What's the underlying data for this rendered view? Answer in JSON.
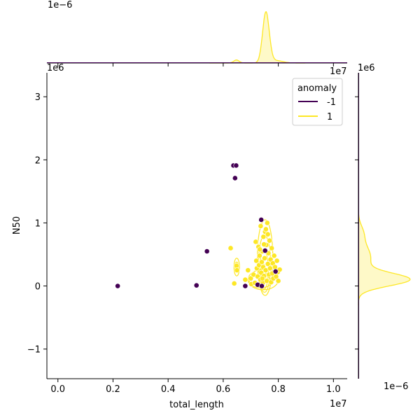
{
  "chart_data": {
    "type": "scatter",
    "xlabel": "total_length",
    "ylabel": "N50",
    "x_offset_label": "1e7",
    "y_offset_label": "1e6",
    "xlim": [
      -0.04,
      1.05
    ],
    "ylim": [
      -1.47,
      3.38
    ],
    "x_ticks": [
      "0.0",
      "0.2",
      "0.4",
      "0.6",
      "0.8",
      "1.0"
    ],
    "x_tick_values": [
      0.0,
      0.2,
      0.4,
      0.6,
      0.8,
      1.0
    ],
    "y_ticks": [
      "−1",
      "0",
      "1",
      "2",
      "3"
    ],
    "y_tick_values": [
      -1,
      0,
      1,
      2,
      3
    ],
    "grid": false,
    "legend": {
      "title": "anomaly",
      "placement": "upper-right",
      "entries": [
        {
          "label": "-1",
          "color": "#440154"
        },
        {
          "label": "1",
          "color": "#fde725"
        }
      ]
    },
    "series": [
      {
        "name": "-1",
        "color": "#440154",
        "points": [
          [
            0.217,
            0.0
          ],
          [
            0.503,
            0.01
          ],
          [
            0.541,
            0.55
          ],
          [
            0.637,
            1.91
          ],
          [
            0.647,
            1.91
          ],
          [
            0.643,
            1.71
          ],
          [
            0.738,
            1.05
          ],
          [
            0.752,
            0.56
          ],
          [
            0.79,
            0.23
          ],
          [
            0.68,
            0.0
          ],
          [
            0.725,
            0.02
          ],
          [
            0.74,
            0.0
          ]
        ]
      },
      {
        "name": "1",
        "color": "#fde725",
        "points": [
          [
            0.627,
            0.6
          ],
          [
            0.64,
            0.04
          ],
          [
            0.648,
            0.32
          ],
          [
            0.65,
            0.25
          ],
          [
            0.68,
            0.1
          ],
          [
            0.69,
            0.25
          ],
          [
            0.7,
            0.12
          ],
          [
            0.702,
            0.03
          ],
          [
            0.71,
            0.18
          ],
          [
            0.715,
            0.05
          ],
          [
            0.718,
            0.7
          ],
          [
            0.72,
            0.4
          ],
          [
            0.722,
            0.28
          ],
          [
            0.725,
            0.15
          ],
          [
            0.728,
            0.62
          ],
          [
            0.73,
            0.33
          ],
          [
            0.732,
            0.48
          ],
          [
            0.735,
            0.1
          ],
          [
            0.736,
            0.95
          ],
          [
            0.738,
            0.21
          ],
          [
            0.74,
            0.38
          ],
          [
            0.742,
            0.55
          ],
          [
            0.744,
            0.05
          ],
          [
            0.745,
            0.3
          ],
          [
            0.746,
            0.78
          ],
          [
            0.748,
            0.16
          ],
          [
            0.75,
            0.44
          ],
          [
            0.752,
            0.86
          ],
          [
            0.754,
            0.25
          ],
          [
            0.756,
            0.65
          ],
          [
            0.758,
            0.08
          ],
          [
            0.76,
            1.0
          ],
          [
            0.762,
            0.35
          ],
          [
            0.764,
            0.52
          ],
          [
            0.766,
            0.18
          ],
          [
            0.768,
            0.72
          ],
          [
            0.77,
            0.28
          ],
          [
            0.772,
            0.42
          ],
          [
            0.774,
            0.06
          ],
          [
            0.776,
            0.6
          ],
          [
            0.778,
            0.2
          ],
          [
            0.78,
            0.36
          ],
          [
            0.782,
            0.12
          ],
          [
            0.785,
            0.48
          ],
          [
            0.788,
            0.3
          ],
          [
            0.792,
            0.15
          ],
          [
            0.795,
            0.4
          ],
          [
            0.798,
            0.22
          ],
          [
            0.8,
            0.08
          ],
          [
            0.805,
            0.26
          ],
          [
            0.755,
            0.9
          ],
          [
            0.733,
            0.58
          ],
          [
            0.748,
            0.66
          ],
          [
            0.762,
            0.82
          ],
          [
            0.742,
            0.12
          ]
        ]
      }
    ],
    "marginal_top": {
      "offset_label": "1e−6",
      "series": [
        {
          "name": "-1",
          "color": "#440154"
        },
        {
          "name": "1",
          "color": "#fde725"
        }
      ]
    },
    "marginal_right": {
      "offset_label": "1e−6",
      "series": [
        {
          "name": "-1",
          "color": "#440154"
        },
        {
          "name": "1",
          "color": "#fde725"
        }
      ]
    }
  }
}
